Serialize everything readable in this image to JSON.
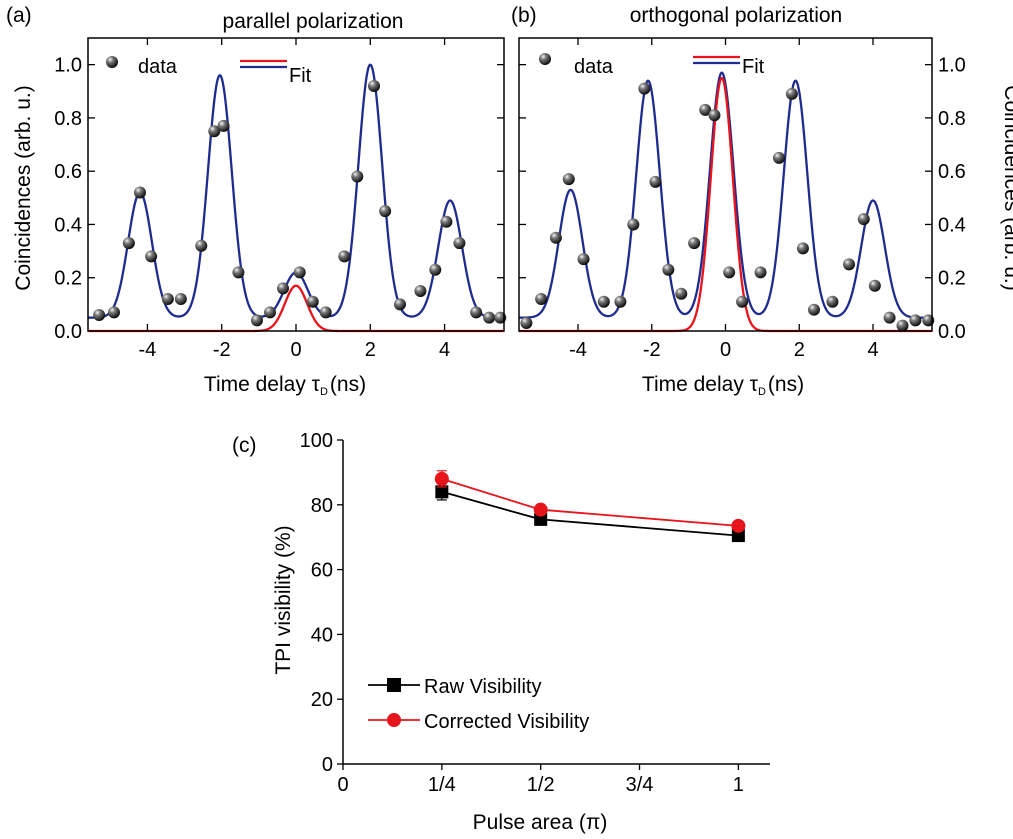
{
  "colors": {
    "data": "#222222",
    "fit_blue": "#1f2c8f",
    "fit_red": "#e8141c",
    "raw": "#000000",
    "corrected": "#e8141c"
  },
  "chart_data": [
    {
      "panel": "(a)",
      "type": "scatter",
      "title": "parallel polarization",
      "xlabel": "Time delay",
      "xlabel_symbol": "τ",
      "xlabel_sub": "D",
      "xlabel_unit": "(ns)",
      "ylabel": "Coincidences (arb. u.)",
      "xlim": [
        -5.6,
        5.6
      ],
      "ylim": [
        0,
        1.1
      ],
      "x_ticks": [
        -4,
        -2,
        0,
        2,
        4
      ],
      "y_ticks": [
        0.0,
        0.2,
        0.4,
        0.6,
        0.8,
        1.0
      ],
      "legend": {
        "data_label": "data",
        "fit_label": "Fit"
      },
      "series": [
        {
          "name": "data",
          "kind": "points",
          "x": [
            -5.3,
            -4.9,
            -4.5,
            -4.2,
            -3.9,
            -3.45,
            -3.1,
            -2.55,
            -2.2,
            -1.95,
            -1.55,
            -1.05,
            -0.7,
            -0.35,
            0.1,
            0.45,
            0.8,
            1.3,
            1.65,
            2.1,
            2.4,
            2.8,
            3.35,
            3.75,
            4.05,
            4.4,
            4.85,
            5.2,
            5.5
          ],
          "y": [
            0.06,
            0.07,
            0.33,
            0.52,
            0.28,
            0.12,
            0.12,
            0.32,
            0.75,
            0.77,
            0.22,
            0.04,
            0.07,
            0.16,
            0.22,
            0.11,
            0.07,
            0.28,
            0.58,
            0.92,
            0.45,
            0.1,
            0.15,
            0.23,
            0.41,
            0.33,
            0.07,
            0.05,
            0.05
          ]
        },
        {
          "name": "Fit",
          "kind": "blue-fit",
          "baseline": 0.05,
          "peaks": [
            {
              "center": -4.2,
              "height": 0.47,
              "width": 0.32
            },
            {
              "center": -2.05,
              "height": 0.91,
              "width": 0.32
            },
            {
              "center": 0.0,
              "height": 0.17,
              "width": 0.32
            },
            {
              "center": 2.0,
              "height": 0.95,
              "width": 0.32
            },
            {
              "center": 4.15,
              "height": 0.44,
              "width": 0.32
            }
          ]
        },
        {
          "name": "Fit",
          "kind": "red-fit",
          "baseline": 0.0,
          "peaks": [
            {
              "center": 0.0,
              "height": 0.17,
              "width": 0.3
            }
          ]
        }
      ]
    },
    {
      "panel": "(b)",
      "type": "scatter",
      "title": "orthogonal polarization",
      "xlabel": "Time delay",
      "xlabel_symbol": "τ",
      "xlabel_sub": "D",
      "xlabel_unit": "(ns)",
      "ylabel": "Coincidences (arb. u.)",
      "xlim": [
        -5.6,
        5.6
      ],
      "ylim": [
        0,
        1.1
      ],
      "x_ticks": [
        -4,
        -2,
        0,
        2,
        4
      ],
      "y_ticks": [
        0.0,
        0.2,
        0.4,
        0.6,
        0.8,
        1.0
      ],
      "legend": {
        "data_label": "data",
        "fit_label": "Fit"
      },
      "series": [
        {
          "name": "data",
          "kind": "points",
          "x": [
            -5.4,
            -5.0,
            -4.6,
            -4.25,
            -3.85,
            -3.3,
            -2.85,
            -2.5,
            -2.2,
            -1.9,
            -1.55,
            -1.2,
            -0.85,
            -0.55,
            -0.3,
            0.1,
            0.45,
            0.95,
            1.45,
            1.8,
            2.1,
            2.4,
            2.9,
            3.35,
            3.75,
            4.05,
            4.45,
            4.8,
            5.15,
            5.5
          ],
          "y": [
            0.03,
            0.12,
            0.35,
            0.57,
            0.27,
            0.11,
            0.11,
            0.4,
            0.91,
            0.56,
            0.23,
            0.14,
            0.33,
            0.83,
            0.81,
            0.22,
            0.11,
            0.22,
            0.65,
            0.89,
            0.31,
            0.08,
            0.11,
            0.25,
            0.42,
            0.17,
            0.05,
            0.02,
            0.04,
            0.04
          ]
        },
        {
          "name": "Fit",
          "kind": "blue-fit",
          "baseline": 0.05,
          "peaks": [
            {
              "center": -4.2,
              "height": 0.48,
              "width": 0.32
            },
            {
              "center": -2.1,
              "height": 0.89,
              "width": 0.32
            },
            {
              "center": -0.1,
              "height": 0.92,
              "width": 0.32
            },
            {
              "center": 1.9,
              "height": 0.89,
              "width": 0.32
            },
            {
              "center": 4.0,
              "height": 0.44,
              "width": 0.32
            }
          ]
        },
        {
          "name": "Fit",
          "kind": "red-fit",
          "baseline": 0.0,
          "peaks": [
            {
              "center": -0.1,
              "height": 0.95,
              "width": 0.3
            }
          ]
        }
      ]
    },
    {
      "panel": "(c)",
      "type": "line",
      "title": "",
      "xlabel": "Pulse area (π)",
      "ylabel": "TPI visibility (%)",
      "xlim": [
        0,
        1.08
      ],
      "ylim": [
        0,
        100
      ],
      "x_ticks": [
        0,
        0.25,
        0.5,
        0.75,
        1
      ],
      "x_tick_labels": [
        "0",
        "1/4",
        "1/2",
        "3/4",
        "1"
      ],
      "y_ticks": [
        0,
        20,
        40,
        60,
        80,
        100
      ],
      "categories": [
        0.25,
        0.5,
        1.0
      ],
      "series": [
        {
          "name": "Raw Visibility",
          "values": [
            84,
            75.5,
            70.5
          ],
          "error": [
            2.5,
            1.0,
            1.0
          ],
          "marker": "square"
        },
        {
          "name": "Corrected Visibility",
          "values": [
            88,
            78.5,
            73.5
          ],
          "error": [
            2.5,
            1.0,
            1.0
          ],
          "marker": "circle"
        }
      ]
    }
  ]
}
